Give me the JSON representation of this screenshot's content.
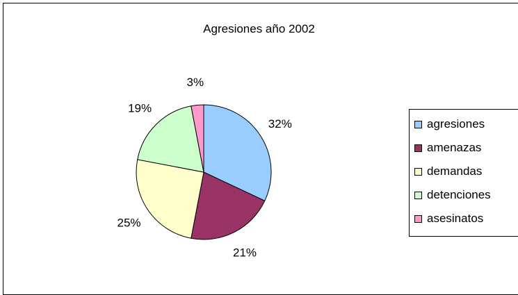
{
  "chart_data": {
    "type": "pie",
    "title": "Agresiones año 2002",
    "categories": [
      "agresiones",
      "amenazas",
      "demandas",
      "detenciones",
      "asesinatos"
    ],
    "values": [
      32,
      21,
      25,
      19,
      3
    ],
    "labels": [
      "32%",
      "21%",
      "25%",
      "19%",
      "3%"
    ],
    "colors": [
      "#99ccff",
      "#993366",
      "#ffffcc",
      "#ccffcc",
      "#ff99cc"
    ],
    "legend_position": "right"
  }
}
